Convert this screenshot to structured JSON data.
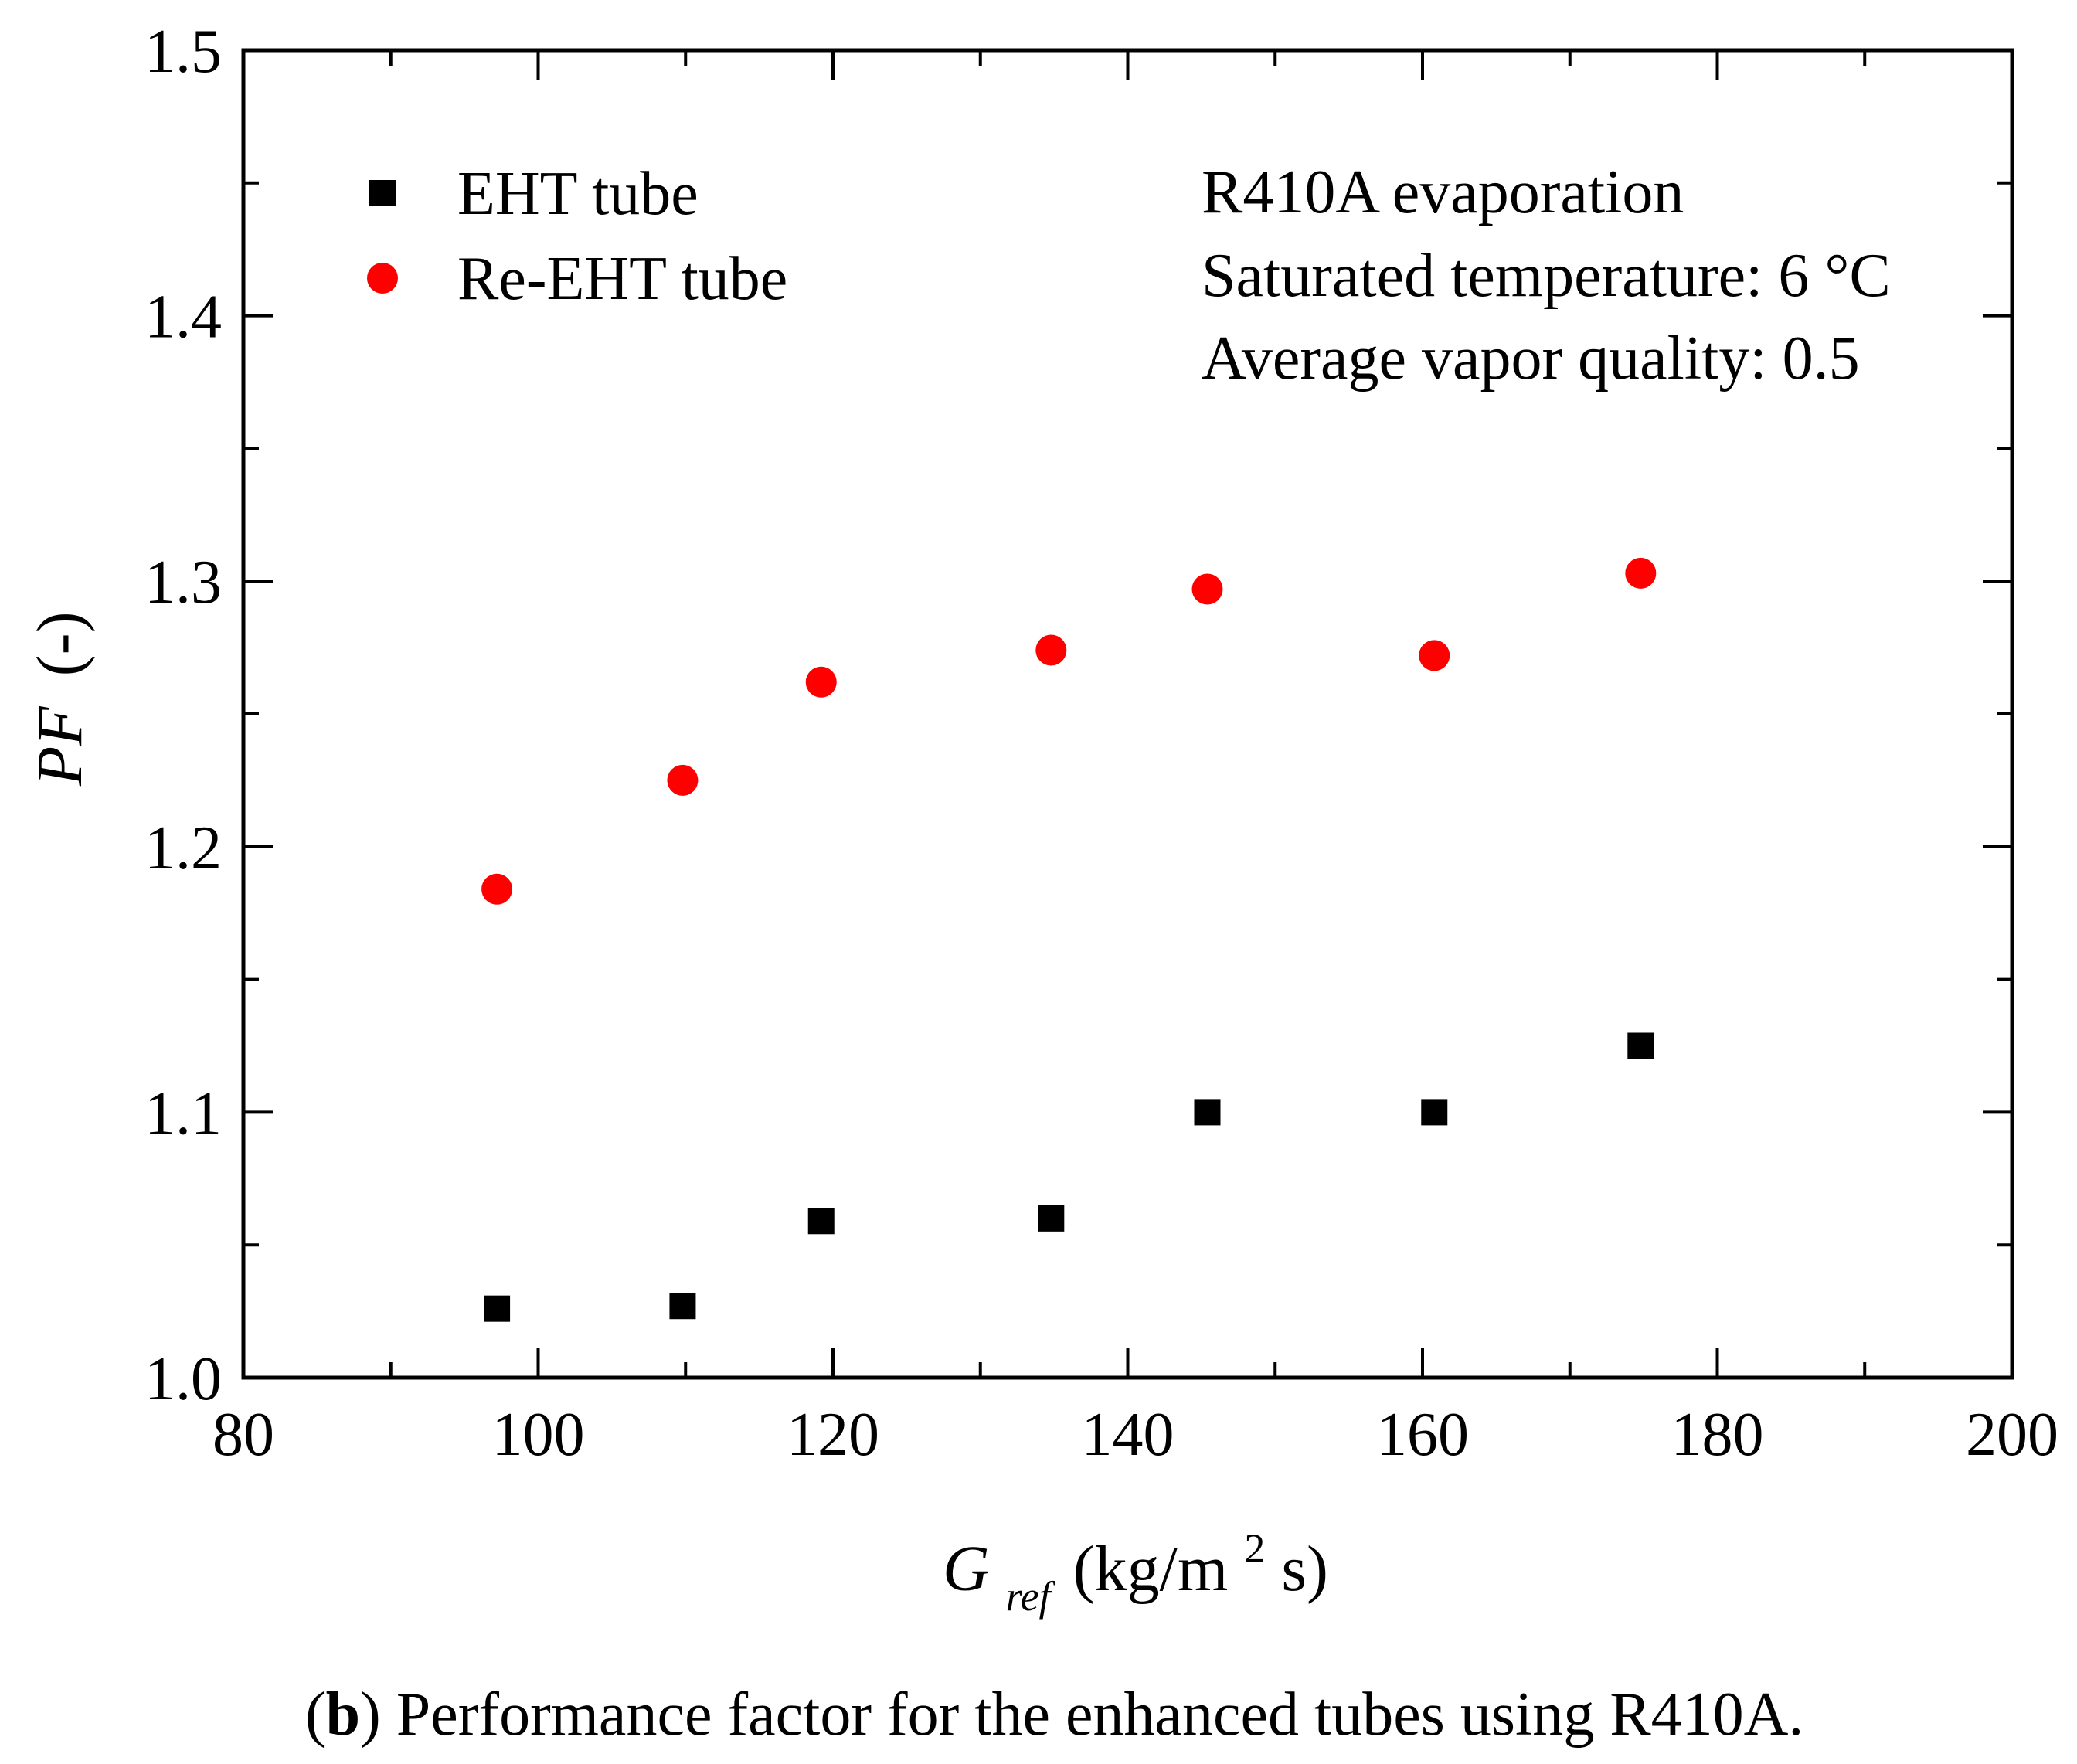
{
  "chart_data": {
    "type": "scatter",
    "x_label": {
      "symbol": "G",
      "subscript": "ref",
      "units_pre": "(kg/m",
      "units_sup": "2",
      "units_post": "s)"
    },
    "y_label": {
      "symbol": "PF",
      "units": "(-)"
    },
    "xlim": [
      80,
      200
    ],
    "ylim": [
      1.0,
      1.5
    ],
    "x_ticks": [
      "80",
      "100",
      "120",
      "140",
      "160",
      "180",
      "200"
    ],
    "y_ticks": [
      "1.0",
      "1.1",
      "1.2",
      "1.3",
      "1.4",
      "1.5"
    ],
    "x_minor_step": 10,
    "y_minor_step": 0.05,
    "grid": false,
    "legend_position": "top-left",
    "series": [
      {
        "name": "EHT tube",
        "marker": "square",
        "color": "#000000",
        "x": [
          97.2,
          109.8,
          119.2,
          134.8,
          145.4,
          160.8,
          174.8
        ],
        "y": [
          1.026,
          1.027,
          1.059,
          1.06,
          1.1,
          1.1,
          1.125
        ]
      },
      {
        "name": "Re-EHT tube",
        "marker": "circle",
        "color": "#ff0000",
        "x": [
          97.2,
          109.8,
          119.2,
          134.8,
          145.4,
          160.8,
          174.8
        ],
        "y": [
          1.184,
          1.225,
          1.262,
          1.274,
          1.297,
          1.272,
          1.303
        ]
      }
    ],
    "annotations": [
      "R410A evaporation",
      "Saturated temperature: 6 °C",
      "Average vapor quality: 0.5"
    ]
  },
  "caption": {
    "label": "b",
    "text": "Performance factor for the enhanced tubes using R410A."
  }
}
